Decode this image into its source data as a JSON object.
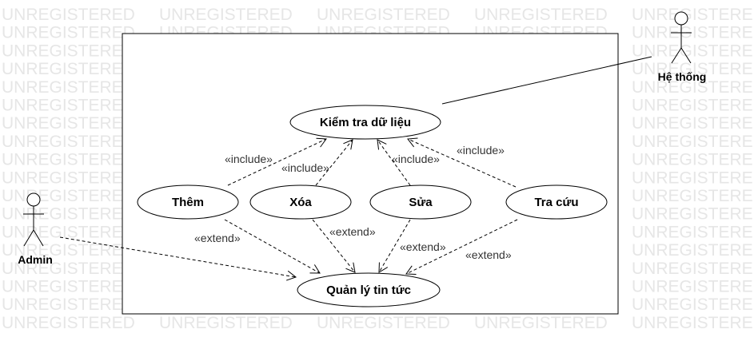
{
  "watermark": "UNREGISTERED",
  "actors": [
    {
      "id": "admin",
      "label": "Admin"
    },
    {
      "id": "system",
      "label": "Hệ thống"
    }
  ],
  "use_cases": [
    {
      "id": "check",
      "label": "Kiểm tra dữ liệu"
    },
    {
      "id": "add",
      "label": "Thêm"
    },
    {
      "id": "delete",
      "label": "Xóa"
    },
    {
      "id": "edit",
      "label": "Sửa"
    },
    {
      "id": "search",
      "label": "Tra cứu"
    },
    {
      "id": "manage",
      "label": "Quản lý tin tức"
    }
  ],
  "relations": [
    {
      "from": "admin",
      "to": "manage",
      "type": "association-dashed"
    },
    {
      "from": "system",
      "to": "check",
      "type": "association"
    },
    {
      "from": "add",
      "to": "check",
      "type": "include",
      "label": "«include»"
    },
    {
      "from": "delete",
      "to": "check",
      "type": "include",
      "label": "«include»"
    },
    {
      "from": "edit",
      "to": "check",
      "type": "include",
      "label": "«include»"
    },
    {
      "from": "search",
      "to": "check",
      "type": "include",
      "label": "«include»"
    },
    {
      "from": "add",
      "to": "manage",
      "type": "extend",
      "label": "«extend»"
    },
    {
      "from": "delete",
      "to": "manage",
      "type": "extend",
      "label": "«extend»"
    },
    {
      "from": "edit",
      "to": "manage",
      "type": "extend",
      "label": "«extend»"
    },
    {
      "from": "search",
      "to": "manage",
      "type": "extend",
      "label": "«extend»"
    }
  ]
}
